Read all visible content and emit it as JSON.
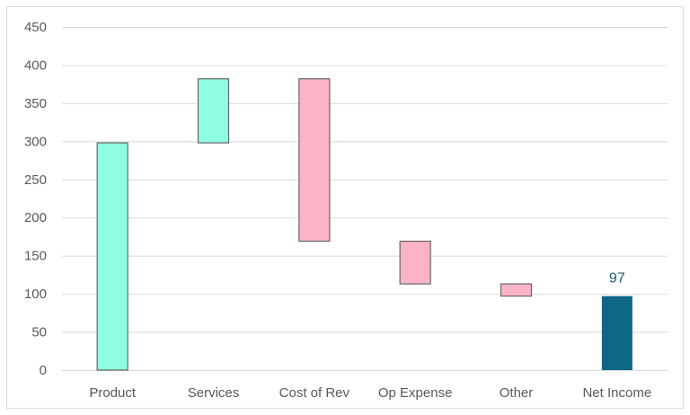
{
  "chart_data": {
    "type": "waterfall",
    "categories": [
      "Product",
      "Services",
      "Cost of Rev",
      "Op Expense",
      "Other",
      "Net Income"
    ],
    "bars": [
      {
        "category": "Product",
        "start": 0,
        "end": 298,
        "kind": "increase"
      },
      {
        "category": "Services",
        "start": 298,
        "end": 382,
        "kind": "increase"
      },
      {
        "category": "Cost of Rev",
        "start": 382,
        "end": 169,
        "kind": "decrease"
      },
      {
        "category": "Op Expense",
        "start": 169,
        "end": 113,
        "kind": "decrease"
      },
      {
        "category": "Other",
        "start": 113,
        "end": 97,
        "kind": "decrease"
      },
      {
        "category": "Net Income",
        "start": 0,
        "end": 97,
        "kind": "total"
      }
    ],
    "data_labels": [
      {
        "category": "Net Income",
        "text": "97"
      }
    ],
    "ylim": [
      0,
      450
    ],
    "yticks": [
      0,
      50,
      100,
      150,
      200,
      250,
      300,
      350,
      400,
      450
    ],
    "grid": true,
    "legend": "none",
    "colors": {
      "increase": "#8ffde2",
      "decrease": "#fbb3c6",
      "total": "#0e6785",
      "bar_border": "#666666",
      "grid": "#d9d9d9",
      "total_label": "#1a5a73"
    }
  }
}
